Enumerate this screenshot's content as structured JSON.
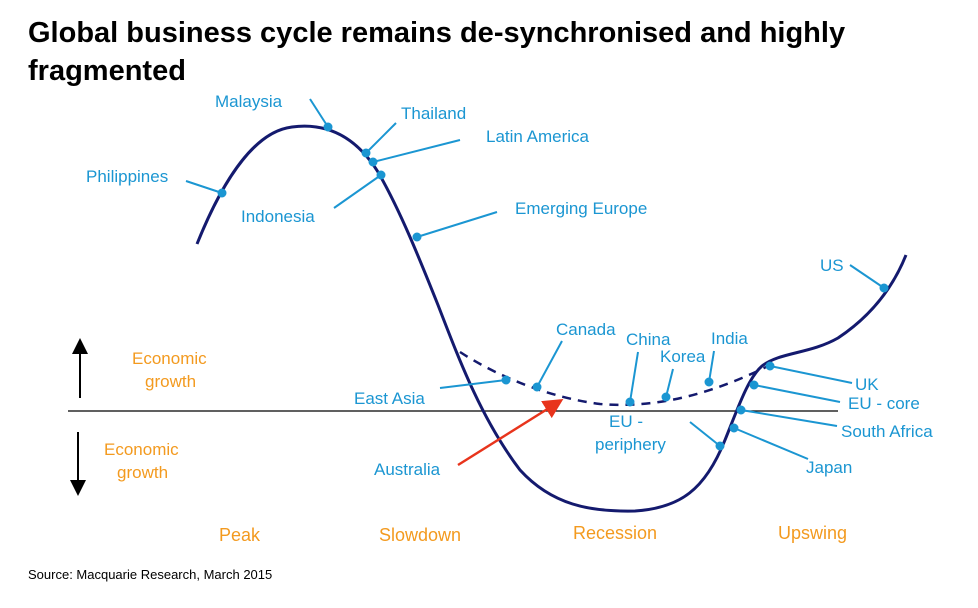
{
  "title": "Global business cycle remains de-synchronised and highly fragmented",
  "source": "Source: Macquarie Research, March 2015",
  "growth_labels": {
    "upper": [
      "Economic",
      "growth"
    ],
    "lower": [
      "Economic",
      "growth"
    ]
  },
  "phases": [
    "Peak",
    "Slowdown",
    "Recession",
    "Upswing"
  ],
  "countries": {
    "malaysia": "Malaysia",
    "thailand": "Thailand",
    "latin_america": "Latin America",
    "philippines": "Philippines",
    "indonesia": "Indonesia",
    "emerging_europe": "Emerging Europe",
    "us": "US",
    "canada": "Canada",
    "china": "China",
    "india": "India",
    "korea": "Korea",
    "east_asia": "East Asia",
    "uk": "UK",
    "eu_core": "EU - core",
    "eu_periphery": [
      "EU -",
      "periphery"
    ],
    "south_africa": "South Africa",
    "australia": "Australia",
    "japan": "Japan"
  },
  "colors": {
    "curve": "#141a6e",
    "label": "#1b96d2",
    "growth": "#f39a1f",
    "australia_arrow": "#e8341c"
  }
}
